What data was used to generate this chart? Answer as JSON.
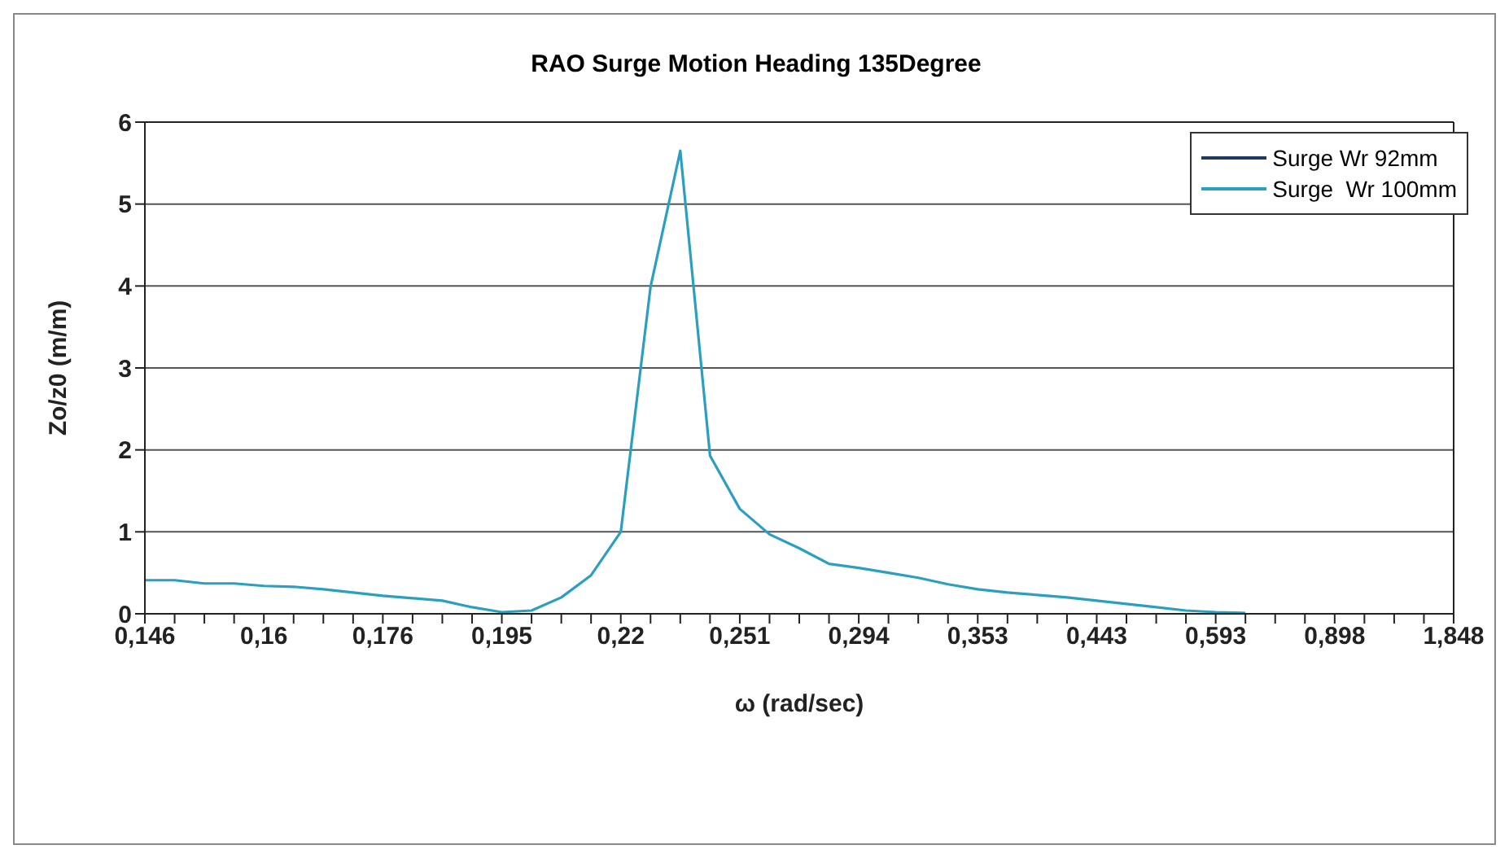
{
  "chart_data": {
    "type": "line",
    "title": "RAO Surge Motion Heading 135Degree",
    "xlabel": "ω (rad/sec)",
    "ylabel": "Zo/z0 (m/m)",
    "categories": [
      "0,146",
      null,
      null,
      null,
      "0,16",
      null,
      null,
      null,
      "0,176",
      null,
      null,
      null,
      "0,195",
      null,
      null,
      null,
      "0,22",
      null,
      null,
      null,
      "0,251",
      null,
      null,
      null,
      "0,294",
      null,
      null,
      null,
      "0,353",
      null,
      null,
      null,
      "0,443",
      null,
      null,
      null,
      "0,593",
      null,
      null,
      null,
      "0,898",
      null,
      null,
      null,
      "1,848"
    ],
    "series": [
      {
        "name": "Surge Wr 92mm",
        "color": "#1f3a5f",
        "values": [
          null,
          null,
          null,
          null,
          null,
          null,
          null,
          null,
          null,
          null,
          null,
          null,
          null,
          null,
          null,
          null,
          null,
          null,
          null,
          null,
          null,
          null,
          null,
          null,
          null,
          null,
          null,
          null,
          null,
          null,
          null,
          null,
          null,
          null,
          null,
          null,
          null,
          null,
          null,
          null,
          null,
          null,
          null,
          null,
          null
        ]
      },
      {
        "name": "Surge  Wr 100mm",
        "color": "#2a9fc0",
        "values": [
          0.41,
          0.41,
          0.37,
          0.37,
          0.34,
          0.33,
          0.3,
          0.26,
          0.22,
          0.19,
          0.16,
          0.08,
          0.02,
          0.04,
          0.2,
          0.47,
          1.0,
          3.99,
          5.65,
          1.93,
          1.28,
          0.97,
          0.8,
          0.61,
          0.56,
          0.5,
          0.44,
          0.36,
          0.3,
          0.26,
          0.23,
          0.2,
          0.16,
          0.12,
          0.08,
          0.04,
          0.02,
          0.01,
          null,
          null,
          null,
          null,
          null,
          null,
          null
        ]
      }
    ],
    "ylim": [
      0,
      6
    ],
    "yticks": [
      0,
      1,
      2,
      3,
      4,
      5,
      6
    ],
    "grid": "y",
    "legend": "top right"
  }
}
